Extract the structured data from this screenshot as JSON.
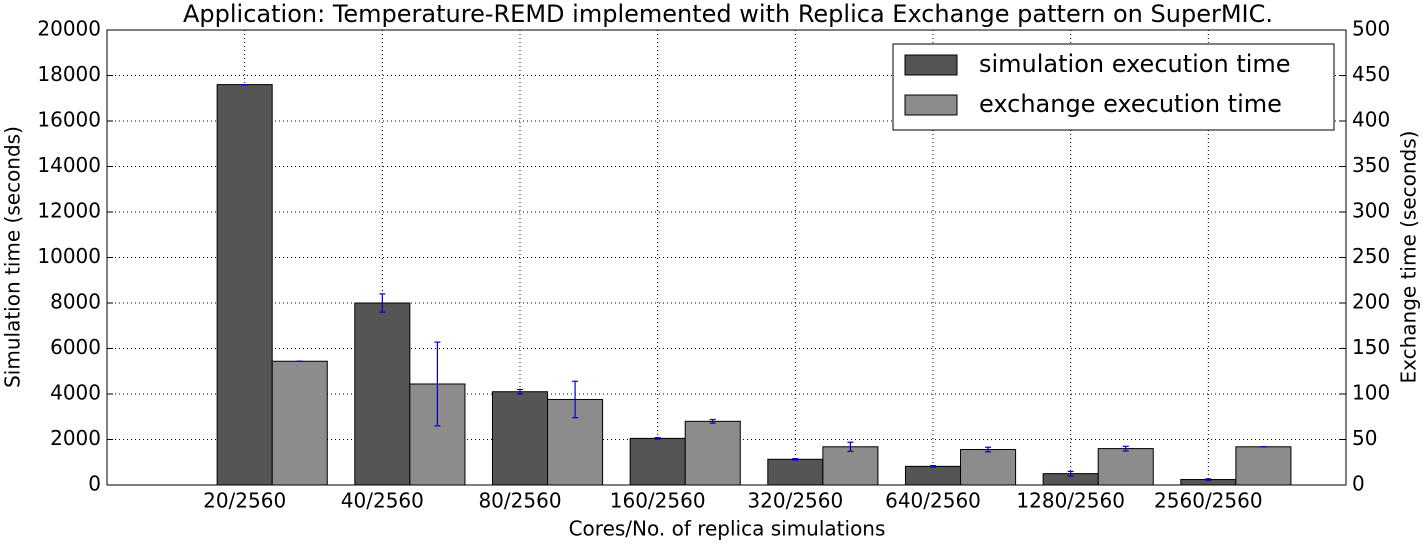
{
  "chart_data": {
    "type": "bar",
    "title": "Application: Temperature-REMD implemented with Replica Exchange pattern on SuperMIC.",
    "xlabel": "Cores/No. of replica simulations",
    "ylabel": "Simulation time (seconds)",
    "y2label": "Exchange time (seconds)",
    "categories": [
      "20/2560",
      "40/2560",
      "80/2560",
      "160/2560",
      "320/2560",
      "640/2560",
      "1280/2560",
      "2560/2560"
    ],
    "series": [
      {
        "name": "simulation execution time",
        "color": "#555555",
        "values": [
          17600,
          8000,
          4100,
          2050,
          1130,
          820,
          500,
          240
        ],
        "errors": [
          0,
          400,
          100,
          30,
          30,
          30,
          100,
          30
        ]
      },
      {
        "name": "exchange execution time",
        "color": "#8c8c8c",
        "axis": "y2",
        "values": [
          136,
          111,
          94,
          70,
          42,
          39,
          40,
          42
        ],
        "errors": [
          0,
          46,
          20,
          2,
          5,
          2.5,
          2.5,
          0
        ]
      }
    ],
    "error_color": "#0000cc",
    "ylim": [
      0,
      20000
    ],
    "yticks": [
      0,
      2000,
      4000,
      6000,
      8000,
      10000,
      12000,
      14000,
      16000,
      18000,
      20000
    ],
    "y2lim": [
      0,
      500
    ],
    "y2ticks": [
      0,
      50,
      100,
      150,
      200,
      250,
      300,
      350,
      400,
      450,
      500
    ],
    "grid": true,
    "legend": "upper right"
  }
}
